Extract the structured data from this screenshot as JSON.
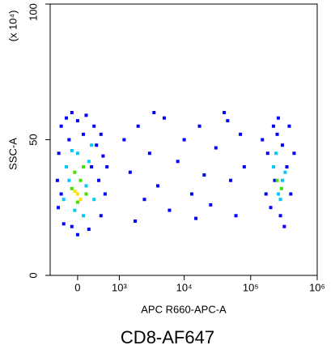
{
  "chart_data": {
    "type": "scatter",
    "caption": "CD8-AF647",
    "x_label": "APC R660-APC-A",
    "y_label": "SSC-A",
    "y_multiplier": "(x 10⁴)",
    "xscale": "asinh",
    "xlim": [
      -550,
      1000000
    ],
    "ylim": [
      0,
      100
    ],
    "xticks": [
      0,
      {
        "value": 1000,
        "label": "10³"
      },
      {
        "value": 10000,
        "label": "10⁴"
      },
      {
        "value": 100000,
        "label": "10⁵"
      },
      {
        "value": 1000000,
        "label": "10⁶"
      }
    ],
    "yticks": [
      0,
      50,
      100
    ],
    "series": [
      {
        "color": "#0000ff",
        "x": [
          -300,
          -200,
          -100,
          0,
          150,
          300,
          450,
          -350,
          500,
          600,
          -380,
          550,
          -360,
          450,
          -250,
          200,
          0,
          -100,
          350,
          -150,
          100,
          250,
          -300,
          400,
          1200,
          1500,
          2000,
          2500,
          3000,
          4000,
          5000,
          6000,
          8000,
          10000,
          13000,
          17000,
          20000,
          25000,
          30000,
          40000,
          50000,
          60000,
          70000,
          80000,
          1800,
          3500,
          15000,
          45000,
          150000,
          180000,
          200000,
          220000,
          250000,
          280000,
          300000,
          350000,
          400000,
          450000,
          320000,
          230000,
          170000,
          380000,
          260000
        ],
        "values": [
          55,
          58,
          60,
          57,
          59,
          55,
          52,
          45,
          44,
          40,
          35,
          30,
          25,
          22,
          19,
          17,
          15,
          18,
          48,
          50,
          52,
          40,
          30,
          35,
          50,
          38,
          55,
          28,
          45,
          33,
          58,
          24,
          42,
          50,
          30,
          55,
          37,
          26,
          47,
          60,
          35,
          22,
          52,
          40,
          20,
          60,
          21,
          57,
          50,
          45,
          25,
          55,
          52,
          22,
          48,
          40,
          30,
          45,
          18,
          35,
          30,
          55,
          58
        ]
      },
      {
        "color": "#00c8ff",
        "x": [
          -200,
          0,
          200,
          -150,
          150,
          300,
          -250,
          100,
          -50,
          250,
          -100,
          220000,
          260000,
          300000,
          240000,
          280000,
          330000
        ],
        "values": [
          40,
          45,
          42,
          35,
          33,
          28,
          28,
          22,
          24,
          48,
          46,
          40,
          30,
          35,
          45,
          28,
          38
        ]
      },
      {
        "color": "#40e000",
        "x": [
          -100,
          50,
          150,
          0,
          -50,
          100,
          250000,
          290000
        ],
        "values": [
          32,
          35,
          30,
          27,
          38,
          40,
          35,
          32
        ]
      },
      {
        "color": "#ffe000",
        "x": [
          0,
          50,
          -50
        ],
        "values": [
          30,
          28,
          31
        ]
      }
    ]
  }
}
